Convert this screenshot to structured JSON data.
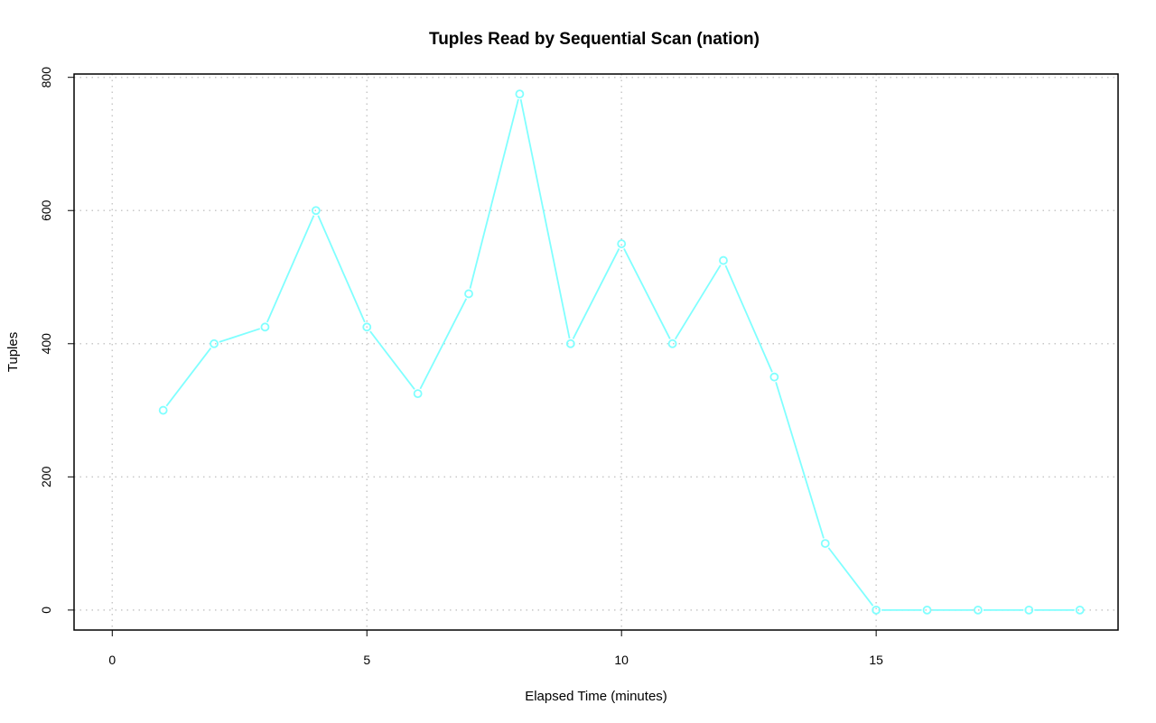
{
  "chart_data": {
    "type": "line",
    "title": "Tuples Read by Sequential Scan (nation)",
    "xlabel": "Elapsed Time (minutes)",
    "ylabel": "Tuples",
    "x": [
      1,
      2,
      3,
      4,
      5,
      6,
      7,
      8,
      9,
      10,
      11,
      12,
      13,
      14,
      15,
      16,
      17,
      18,
      19
    ],
    "series": [
      {
        "values": [
          300,
          400,
          425,
          600,
          425,
          325,
          475,
          775,
          400,
          550,
          400,
          525,
          350,
          100,
          0,
          0,
          0,
          0,
          0
        ],
        "color": "#80ffff"
      }
    ],
    "xlim": [
      -0.75,
      19.75
    ],
    "ylim": [
      -30,
      805
    ],
    "x_ticks": [
      0,
      5,
      10,
      15
    ],
    "y_ticks": [
      0,
      200,
      400,
      600,
      800
    ],
    "x_tick_labels": [
      "0",
      "5",
      "10",
      "15"
    ],
    "y_tick_labels": [
      "0",
      "200",
      "400",
      "600",
      "800"
    ],
    "grid": true,
    "grid_style": "dotted",
    "grid_color": "#c8c8c8",
    "marker": "open-circle"
  }
}
